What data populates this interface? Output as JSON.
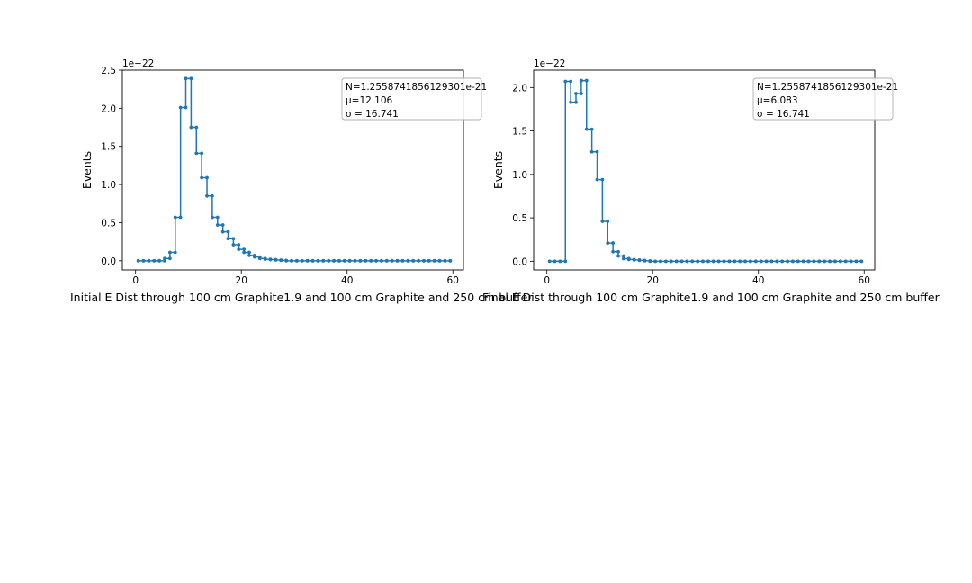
{
  "colors": {
    "series": "#1f77b4",
    "axes": "#000000",
    "legend_border": "#b0b0b0"
  },
  "chart_data": [
    {
      "type": "line",
      "step": "post",
      "markers": "dots",
      "grid": false,
      "legend_position": "top-right",
      "title": "",
      "xlabel": "Initial E Dist through 100 cm Graphite1.9 and 100 cm Graphite and 250 cm buffer",
      "ylabel": "Events",
      "y_offset_text": "1e−22",
      "xlim": [
        -2.5,
        62
      ],
      "ylim": [
        -0.12,
        2.5
      ],
      "xticks": [
        0,
        20,
        40,
        60
      ],
      "xtick_labels": [
        "0",
        "20",
        "40",
        "60"
      ],
      "yticks": [
        0,
        0.5,
        1.0,
        1.5,
        2.0,
        2.5
      ],
      "ytick_labels": [
        "0.0",
        "0.5",
        "1.0",
        "1.5",
        "2.0",
        "2.5"
      ],
      "legend_lines": [
        "N=1.2558741856129301e-21",
        "μ=12.106",
        "σ = 16.741"
      ],
      "x": [
        0.5,
        1.5,
        2.5,
        3.5,
        4.5,
        5.5,
        6.5,
        7.5,
        8.5,
        9.5,
        10.5,
        11.5,
        12.5,
        13.5,
        14.5,
        15.5,
        16.5,
        17.5,
        18.5,
        19.5,
        20.5,
        21.5,
        22.5,
        23.5,
        24.5,
        25.5,
        26.5,
        27.5,
        28.5,
        29.5,
        30.5,
        31.5,
        32.5,
        33.5,
        34.5,
        35.5,
        36.5,
        37.5,
        38.5,
        39.5,
        40.5,
        41.5,
        42.5,
        43.5,
        44.5,
        45.5,
        46.5,
        47.5,
        48.5,
        49.5,
        50.5,
        51.5,
        52.5,
        53.5,
        54.5,
        55.5,
        56.5,
        57.5,
        58.5,
        59.5
      ],
      "y": [
        0,
        0,
        0,
        0,
        0,
        0.03,
        0.11,
        0.57,
        2.01,
        2.39,
        1.75,
        1.41,
        1.09,
        0.85,
        0.57,
        0.47,
        0.38,
        0.29,
        0.21,
        0.15,
        0.11,
        0.07,
        0.05,
        0.03,
        0.02,
        0.015,
        0.01,
        0.005,
        0,
        0,
        0,
        0,
        0,
        0,
        0,
        0,
        0,
        0,
        0,
        0,
        0,
        0,
        0,
        0,
        0,
        0,
        0,
        0,
        0,
        0,
        0,
        0,
        0,
        0,
        0,
        0,
        0,
        0,
        0,
        0
      ]
    },
    {
      "type": "line",
      "step": "post",
      "markers": "dots",
      "grid": false,
      "legend_position": "top-right",
      "title": "",
      "xlabel": "Final E Dist through 100 cm Graphite1.9 and 100 cm Graphite and 250 cm buffer",
      "ylabel": "Events",
      "y_offset_text": "1e−22",
      "xlim": [
        -2.5,
        62
      ],
      "ylim": [
        -0.1,
        2.2
      ],
      "xticks": [
        0,
        20,
        40,
        60
      ],
      "xtick_labels": [
        "0",
        "20",
        "40",
        "60"
      ],
      "yticks": [
        0,
        0.5,
        1.0,
        1.5,
        2.0
      ],
      "ytick_labels": [
        "0.0",
        "0.5",
        "1.0",
        "1.5",
        "2.0"
      ],
      "legend_lines": [
        "N=1.2558741856129301e-21",
        "μ=6.083",
        "σ = 16.741"
      ],
      "x": [
        0.5,
        1.5,
        2.5,
        3.5,
        4.5,
        5.5,
        6.5,
        7.5,
        8.5,
        9.5,
        10.5,
        11.5,
        12.5,
        13.5,
        14.5,
        15.5,
        16.5,
        17.5,
        18.5,
        19.5,
        20.5,
        21.5,
        22.5,
        23.5,
        24.5,
        25.5,
        26.5,
        27.5,
        28.5,
        29.5,
        30.5,
        31.5,
        32.5,
        33.5,
        34.5,
        35.5,
        36.5,
        37.5,
        38.5,
        39.5,
        40.5,
        41.5,
        42.5,
        43.5,
        44.5,
        45.5,
        46.5,
        47.5,
        48.5,
        49.5,
        50.5,
        51.5,
        52.5,
        53.5,
        54.5,
        55.5,
        56.5,
        57.5,
        58.5,
        59.5
      ],
      "y": [
        0,
        0,
        0,
        2.07,
        1.83,
        1.93,
        2.08,
        1.52,
        1.26,
        0.94,
        0.46,
        0.21,
        0.11,
        0.06,
        0.03,
        0.02,
        0.015,
        0.01,
        0.005,
        0,
        0,
        0,
        0,
        0,
        0,
        0,
        0,
        0,
        0,
        0,
        0,
        0,
        0,
        0,
        0,
        0,
        0,
        0,
        0,
        0,
        0,
        0,
        0,
        0,
        0,
        0,
        0,
        0,
        0,
        0,
        0,
        0,
        0,
        0,
        0,
        0,
        0,
        0,
        0,
        0
      ]
    }
  ]
}
